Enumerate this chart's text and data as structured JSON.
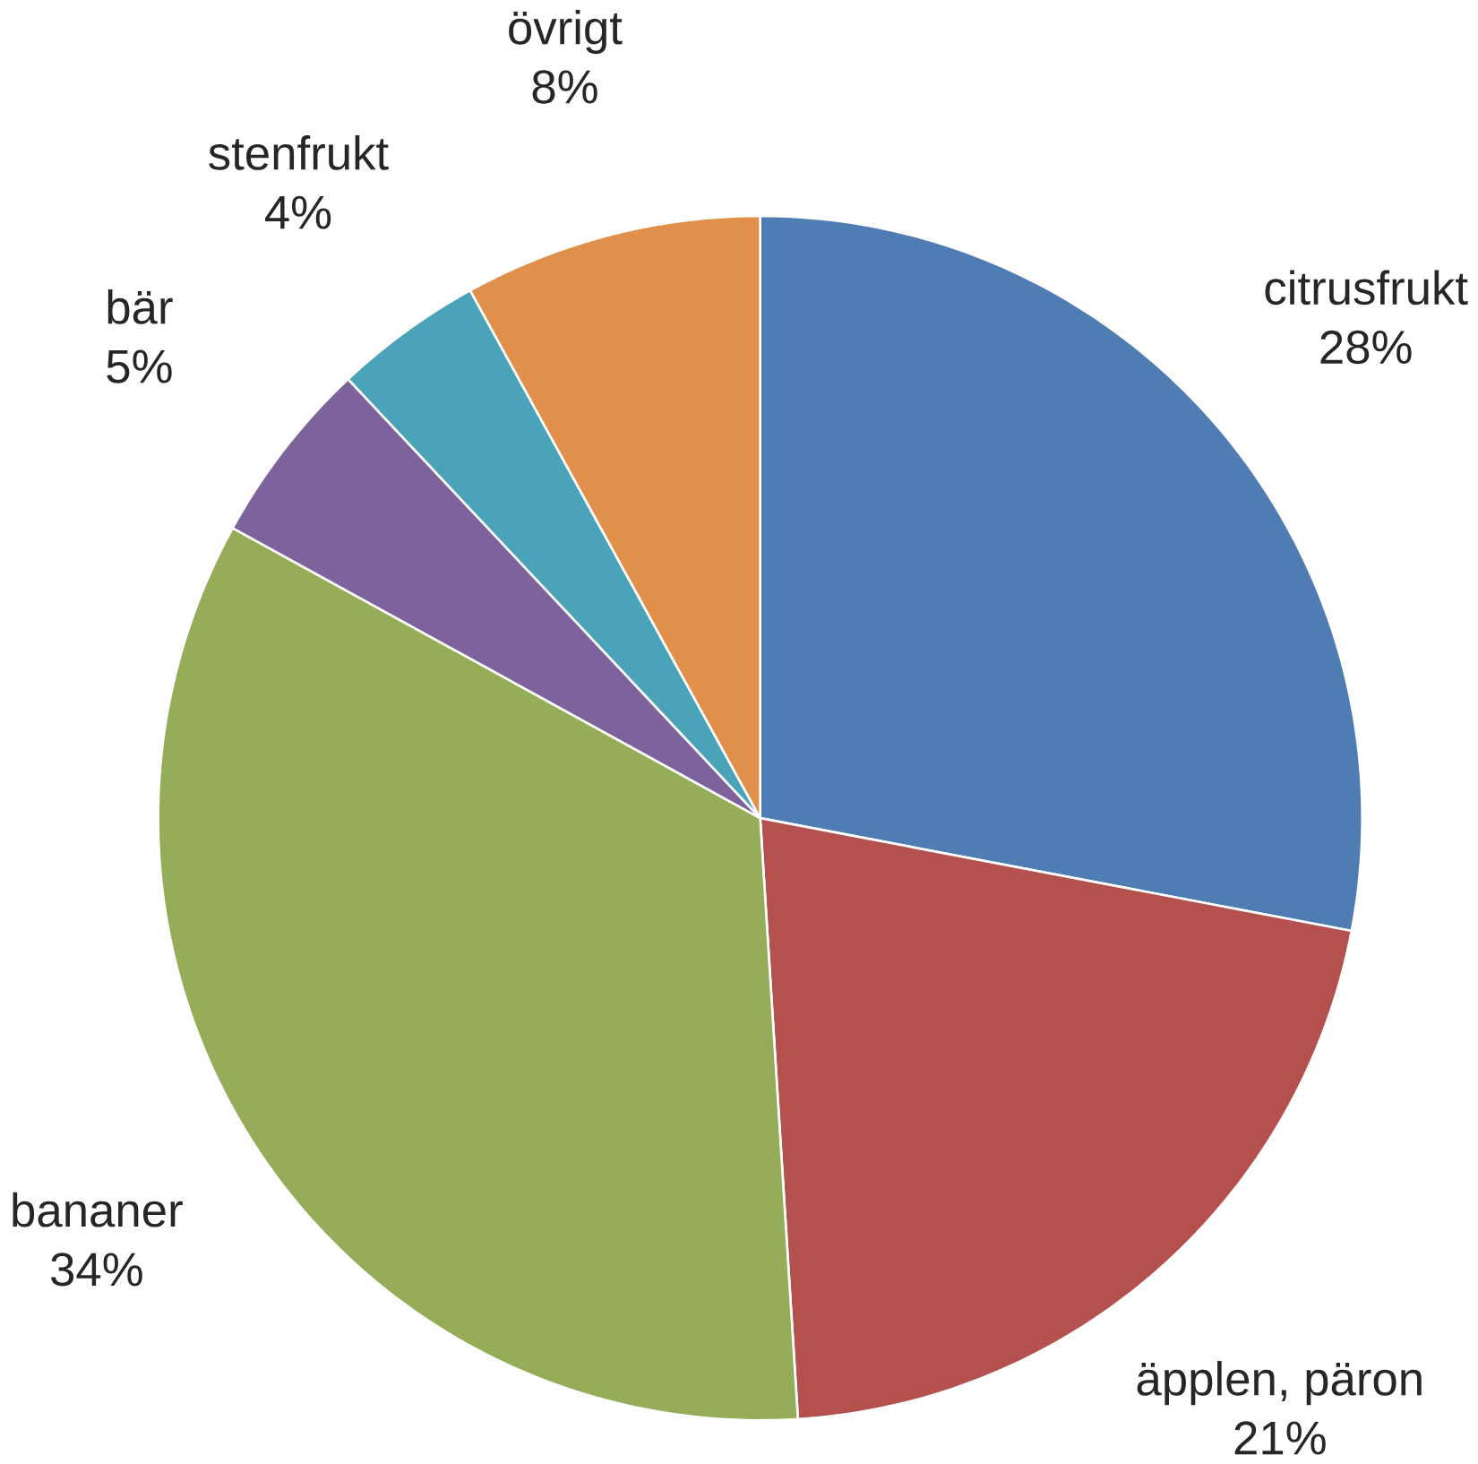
{
  "chart_data": {
    "type": "pie",
    "categories": [
      "citrusfrukt",
      "äpplen, päron",
      "bananer",
      "bär",
      "stenfrukt",
      "övrigt"
    ],
    "values": [
      28,
      21,
      34,
      5,
      4,
      8
    ],
    "value_labels": [
      "28%",
      "21%",
      "34%",
      "5%",
      "4%",
      "8%"
    ],
    "colors": [
      "#4f7db3",
      "#b4504e",
      "#95ad59",
      "#7d629b",
      "#4aa3b8",
      "#e0904a"
    ]
  }
}
